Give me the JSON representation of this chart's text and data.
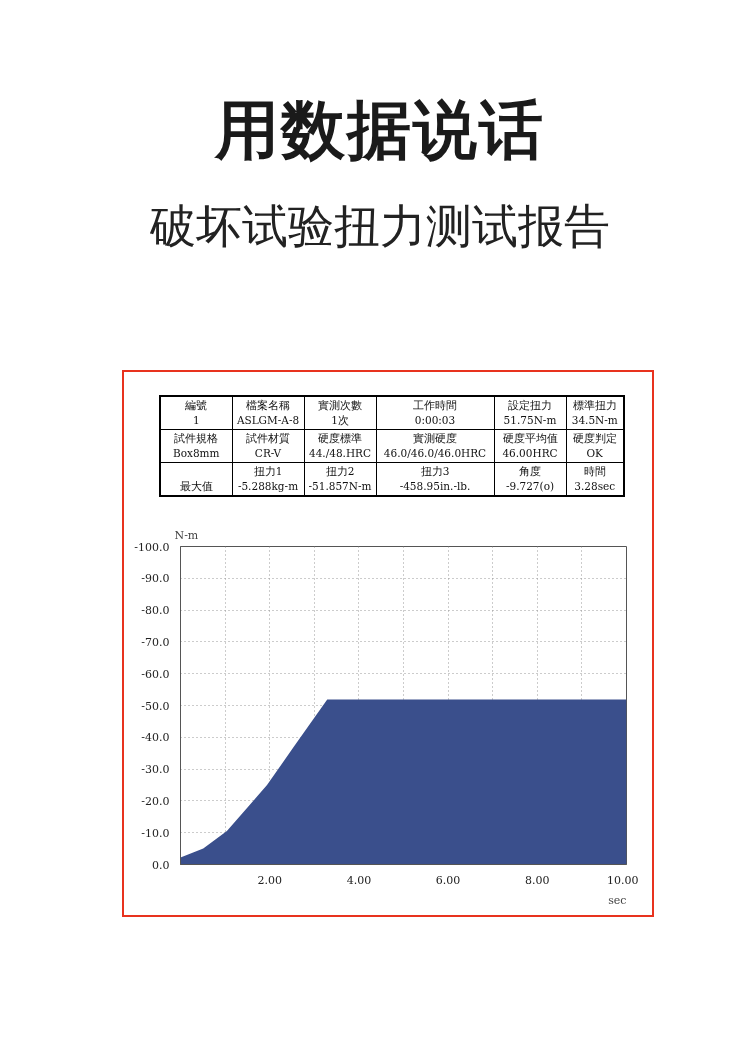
{
  "chart_data": {
    "type": "area",
    "title": "用数据说话",
    "subtitle": "破坏试验扭力测试报告",
    "annotations": [
      "編號\n1",
      "檔案名稱\nASLGM-A-8",
      "實測次數\n1次",
      "工作時間\n0:00:03",
      "設定扭力\n51.75N-m",
      "標準扭力\n34.5N-m",
      "試件規格\nBox8mm",
      "試件材質\nCR-V",
      "硬度標準\n44./48.HRC",
      "實測硬度\n46.0/46.0/46.0HRC",
      "硬度平均值\n46.00HRC",
      "硬度判定\nOK",
      "\n最大值",
      "扭力1\n-5.288kg-m",
      "扭力2\n-51.857N-m",
      "扭力3\n-458.95in.-lb.",
      "角度\n-9.727(o)",
      "時間\n3.28sec"
    ],
    "ylabel": "N-m",
    "xlabel": "sec",
    "x": [
      0,
      0.51,
      1.04,
      1.94,
      2.54,
      3.29,
      10.0
    ],
    "series": [
      {
        "color": "#3a4f8c",
        "values": [
          -2.2,
          -5.0,
          -10.5,
          -25.0,
          -37.0,
          -51.9,
          -51.9
        ]
      }
    ],
    "xlim": [
      0,
      10
    ],
    "ylim": [
      0,
      -100
    ],
    "xticks": [
      {
        "value": 1,
        "label": null
      },
      {
        "value": 2,
        "label": "2.00"
      },
      {
        "value": 3,
        "label": null
      },
      {
        "value": 4,
        "label": "4.00"
      },
      {
        "value": 5,
        "label": null
      },
      {
        "value": 6,
        "label": "6.00"
      },
      {
        "value": 7,
        "label": null
      },
      {
        "value": 8,
        "label": "8.00"
      },
      {
        "value": 9,
        "label": null
      },
      {
        "value": 10,
        "label": "10.00"
      }
    ],
    "yticks": [
      {
        "value": 0,
        "label": "0.0"
      },
      {
        "value": -10,
        "label": "-10.0"
      },
      {
        "value": -20,
        "label": "-20.0"
      },
      {
        "value": -30,
        "label": "-30.0"
      },
      {
        "value": -40,
        "label": "-40.0"
      },
      {
        "value": -50,
        "label": "-50.0"
      },
      {
        "value": -60,
        "label": "-60.0"
      },
      {
        "value": -70,
        "label": "-70.0"
      },
      {
        "value": -80,
        "label": "-80.0"
      },
      {
        "value": -90,
        "label": "-90.0"
      },
      {
        "value": -100,
        "label": "-100.0"
      }
    ],
    "grid": true
  }
}
